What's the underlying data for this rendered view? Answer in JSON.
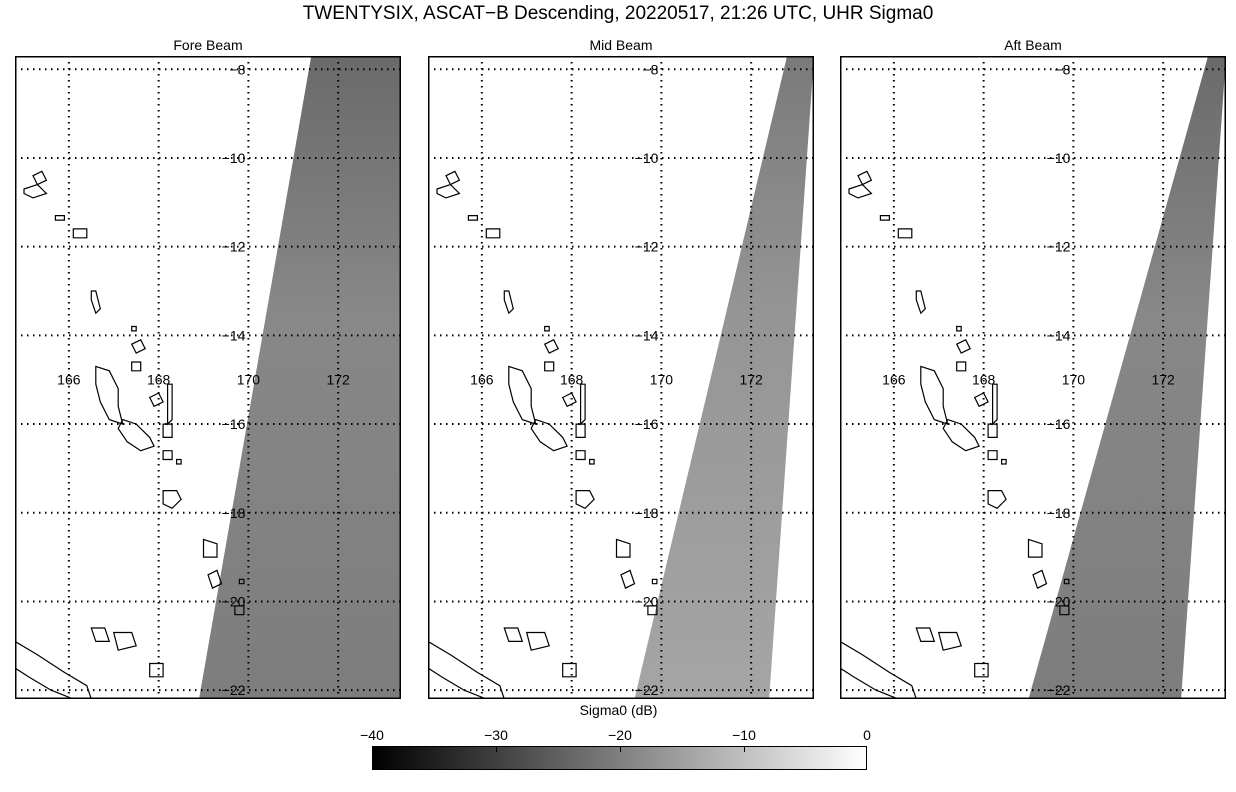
{
  "title": "TWENTYSIX, ASCAT−B Descending, 20220517, 21:26 UTC, UHR Sigma0",
  "panels": [
    {
      "label": "Fore Beam"
    },
    {
      "label": "Mid Beam"
    },
    {
      "label": "Aft Beam"
    }
  ],
  "map": {
    "lon_range": [
      164.8,
      173.4
    ],
    "lat_range": [
      -22.2,
      -7.7
    ],
    "lon_ticks": [
      {
        "value": 166,
        "label": "166"
      },
      {
        "value": 168,
        "label": "168"
      },
      {
        "value": 170,
        "label": "170"
      },
      {
        "value": 172,
        "label": "172"
      }
    ],
    "lat_ticks": [
      {
        "value": -8,
        "label": "−8"
      },
      {
        "value": -10,
        "label": "−10"
      },
      {
        "value": -12,
        "label": "−12"
      },
      {
        "value": -14,
        "label": "−14"
      },
      {
        "value": -16,
        "label": "−16"
      },
      {
        "value": -18,
        "label": "−18"
      },
      {
        "value": -20,
        "label": "−20"
      },
      {
        "value": -22,
        "label": "−22"
      }
    ],
    "grid": "dotted"
  },
  "colorbar": {
    "label": "Sigma0 (dB)",
    "ticks": [
      "−40",
      "−30",
      "−20",
      "−10",
      "0"
    ],
    "min": -40,
    "max": 0,
    "colormap": "gray"
  }
}
